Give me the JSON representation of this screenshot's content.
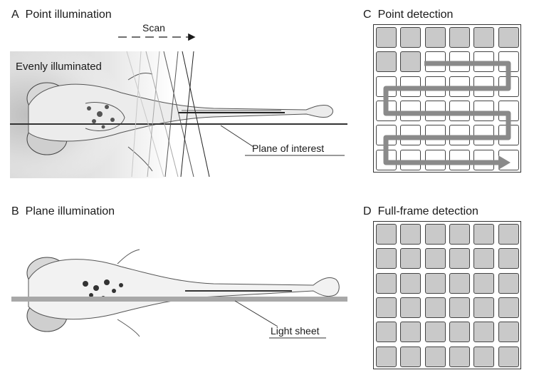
{
  "panels": {
    "a": {
      "letter": "A",
      "title": "Point illumination",
      "scan": "Scan",
      "evenly": "Evenly illuminated",
      "plane": "Plane of interest"
    },
    "b": {
      "letter": "B",
      "title": "Plane illumination",
      "sheet": "Light sheet"
    },
    "c": {
      "letter": "C",
      "title": "Point detection",
      "filled_cells": 8
    },
    "d": {
      "letter": "D",
      "title": "Full-frame detection",
      "filled_cells": 36
    }
  },
  "colors": {
    "gray_fill": "#c9c9c9",
    "path_gray": "#8a8a8a",
    "sheet_gray": "#a8a8a8",
    "ink": "#1a1a1a"
  }
}
